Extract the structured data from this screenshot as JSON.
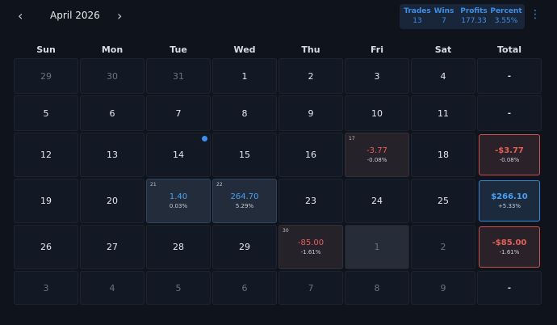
{
  "header": {
    "month": "April 2026",
    "stats": [
      {
        "label": "Trades",
        "value": "13"
      },
      {
        "label": "Wins",
        "value": "7"
      },
      {
        "label": "Profits",
        "value": "177.33"
      },
      {
        "label": "Percent",
        "value": "3.55%"
      }
    ]
  },
  "weekdays": [
    "Sun",
    "Mon",
    "Tue",
    "Wed",
    "Thu",
    "Fri",
    "Sat",
    "Total"
  ],
  "weeks": [
    {
      "days": [
        {
          "day": "29",
          "muted": true
        },
        {
          "day": "30",
          "muted": true
        },
        {
          "day": "31",
          "muted": true
        },
        {
          "day": "1"
        },
        {
          "day": "2"
        },
        {
          "day": "3"
        },
        {
          "day": "4"
        }
      ],
      "total": {
        "pnl": "-"
      }
    },
    {
      "days": [
        {
          "day": "5"
        },
        {
          "day": "6"
        },
        {
          "day": "7"
        },
        {
          "day": "8"
        },
        {
          "day": "9"
        },
        {
          "day": "10"
        },
        {
          "day": "11"
        }
      ],
      "total": {
        "pnl": "-"
      }
    },
    {
      "days": [
        {
          "day": "12"
        },
        {
          "day": "13"
        },
        {
          "day": "14",
          "dot": true
        },
        {
          "day": "15"
        },
        {
          "day": "16"
        },
        {
          "day": "17",
          "pnl": "-3.77",
          "pct": "-0.08%",
          "tone": "loss"
        },
        {
          "day": "18"
        }
      ],
      "total": {
        "pnl": "-$3.77",
        "pct": "-0.08%",
        "tone": "loss"
      }
    },
    {
      "days": [
        {
          "day": "19"
        },
        {
          "day": "20"
        },
        {
          "day": "21",
          "pnl": "1.40",
          "pct": "0.03%",
          "tone": "gain"
        },
        {
          "day": "22",
          "pnl": "264.70",
          "pct": "5.29%",
          "tone": "gain"
        },
        {
          "day": "23"
        },
        {
          "day": "24"
        },
        {
          "day": "25"
        }
      ],
      "total": {
        "pnl": "$266.10",
        "pct": "+5.33%",
        "tone": "gain"
      }
    },
    {
      "days": [
        {
          "day": "26"
        },
        {
          "day": "27"
        },
        {
          "day": "28"
        },
        {
          "day": "29"
        },
        {
          "day": "30",
          "pnl": "-85.00",
          "pct": "-1.61%",
          "tone": "loss"
        },
        {
          "day": "1",
          "muted": true,
          "selected": true
        },
        {
          "day": "2",
          "muted": true
        }
      ],
      "total": {
        "pnl": "-$85.00",
        "pct": "-1.61%",
        "tone": "loss"
      }
    },
    {
      "days": [
        {
          "day": "3",
          "muted": true
        },
        {
          "day": "4",
          "muted": true
        },
        {
          "day": "5",
          "muted": true
        },
        {
          "day": "6",
          "muted": true
        },
        {
          "day": "7",
          "muted": true
        },
        {
          "day": "8",
          "muted": true
        },
        {
          "day": "9",
          "muted": true
        }
      ],
      "total": {
        "pnl": "-"
      }
    }
  ]
}
